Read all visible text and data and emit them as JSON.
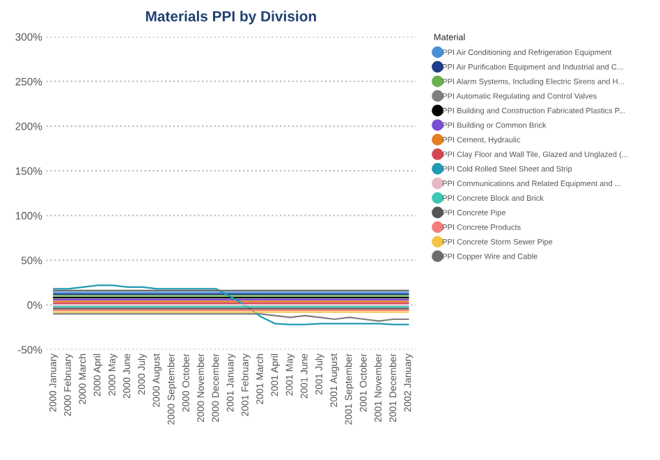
{
  "chart_data": {
    "type": "line",
    "title": "Materials PPI by Division",
    "legend_title": "Material",
    "legend": "right",
    "grid": "y",
    "marker": "none",
    "line_style": "solid",
    "categories": [
      "2000 January",
      "2000 February",
      "2000 March",
      "2000 April",
      "2000 May",
      "2000 June",
      "2000 July",
      "2000 August",
      "2000 September",
      "2000 October",
      "2000 November",
      "2000 December",
      "2001 January",
      "2001 February",
      "2001 March",
      "2001 April",
      "2001 May",
      "2001 June",
      "2001 July",
      "2001 August",
      "2001 September",
      "2001 October",
      "2001 November",
      "2001 December",
      "2002 January"
    ],
    "ylim": [
      -50,
      300
    ],
    "yticks": [
      {
        "value": -50,
        "label": "-50%"
      },
      {
        "value": 0,
        "label": "0%"
      },
      {
        "value": 50,
        "label": "50%"
      },
      {
        "value": 100,
        "label": "100%"
      },
      {
        "value": 150,
        "label": "150%"
      },
      {
        "value": 200,
        "label": "200%"
      },
      {
        "value": 250,
        "label": "250%"
      },
      {
        "value": 300,
        "label": "300%"
      }
    ],
    "series": [
      {
        "name": "PPI Air Conditioning and Refrigeration Equipment",
        "color": "#4a90d9",
        "values": [
          14,
          14,
          14,
          14,
          14,
          14,
          14,
          14,
          14,
          14,
          14,
          14,
          14,
          14,
          14,
          14,
          14,
          14,
          14,
          14,
          14,
          14,
          14,
          14,
          14
        ]
      },
      {
        "name": "PPI Air Purification Equipment and Industrial and C...",
        "color": "#1f3c88",
        "values": [
          12,
          12,
          12,
          12,
          12,
          12,
          12,
          12,
          12,
          12,
          12,
          12,
          12,
          12,
          12,
          12,
          12,
          12,
          12,
          12,
          12,
          12,
          12,
          12,
          12
        ]
      },
      {
        "name": "PPI Alarm Systems, Including Electric Sirens and H...",
        "color": "#6ab04c",
        "values": [
          10,
          10,
          10,
          10,
          10,
          10,
          10,
          10,
          10,
          10,
          10,
          10,
          10,
          10,
          10,
          10,
          10,
          10,
          10,
          10,
          10,
          10,
          10,
          10,
          10
        ]
      },
      {
        "name": "PPI Automatic Regulating and Control Valves",
        "color": "#7f7f7f",
        "values": [
          -10,
          -10,
          -10,
          -10,
          -10,
          -10,
          -10,
          -10,
          -10,
          -10,
          -10,
          -10,
          -10,
          -10,
          -10,
          -12,
          -14,
          -12,
          -14,
          -16,
          -14,
          -16,
          -18,
          -16,
          -16
        ]
      },
      {
        "name": "PPI Building and Construction Fabricated Plastics P...",
        "color": "#000000",
        "values": [
          8,
          8,
          8,
          8,
          8,
          8,
          8,
          8,
          8,
          8,
          8,
          8,
          8,
          8,
          8,
          8,
          8,
          8,
          8,
          8,
          8,
          8,
          8,
          8,
          8
        ]
      },
      {
        "name": "PPI Building or Common Brick",
        "color": "#7b4fd6",
        "values": [
          6,
          6,
          6,
          6,
          6,
          6,
          6,
          6,
          6,
          6,
          6,
          6,
          6,
          6,
          6,
          6,
          6,
          6,
          6,
          6,
          6,
          6,
          6,
          6,
          6
        ]
      },
      {
        "name": "PPI Cement, Hydraulic",
        "color": "#e67e22",
        "values": [
          4,
          4,
          4,
          4,
          4,
          4,
          4,
          4,
          4,
          4,
          4,
          4,
          4,
          4,
          4,
          4,
          4,
          4,
          4,
          4,
          4,
          4,
          4,
          4,
          4
        ]
      },
      {
        "name": "PPI Clay Floor and Wall Tile, Glazed and Unglazed (...",
        "color": "#d64550",
        "values": [
          2,
          2,
          2,
          2,
          2,
          2,
          2,
          2,
          2,
          2,
          2,
          2,
          2,
          2,
          2,
          2,
          2,
          2,
          2,
          2,
          2,
          2,
          2,
          2,
          2
        ]
      },
      {
        "name": "PPI Cold Rolled Steel Sheet and Strip",
        "color": "#1f9bb5",
        "values": [
          18,
          18,
          20,
          22,
          22,
          20,
          20,
          18,
          18,
          18,
          18,
          18,
          9,
          -1,
          -13,
          -21,
          -22,
          -22,
          -21,
          -21,
          -21,
          -21,
          -21,
          -22,
          -22
        ]
      },
      {
        "name": "PPI Communications and Related Equipment and ...",
        "color": "#e6b8c2",
        "values": [
          0,
          0,
          0,
          0,
          0,
          0,
          0,
          0,
          0,
          0,
          0,
          0,
          0,
          0,
          0,
          0,
          0,
          0,
          0,
          0,
          0,
          0,
          0,
          0,
          0
        ]
      },
      {
        "name": "PPI Concrete Block and Brick",
        "color": "#3cc8b4",
        "values": [
          -2,
          -2,
          -2,
          -2,
          -2,
          -2,
          -2,
          -2,
          -2,
          -2,
          -2,
          -2,
          -2,
          -2,
          -2,
          -2,
          -2,
          -2,
          -2,
          -2,
          -2,
          -2,
          -2,
          -2,
          -2
        ]
      },
      {
        "name": "PPI Concrete Pipe",
        "color": "#555555",
        "values": [
          -4,
          -4,
          -4,
          -4,
          -4,
          -4,
          -4,
          -4,
          -4,
          -4,
          -4,
          -4,
          -4,
          -4,
          -4,
          -4,
          -4,
          -4,
          -4,
          -4,
          -4,
          -4,
          -4,
          -4,
          -4
        ]
      },
      {
        "name": "PPI Concrete Products",
        "color": "#f47c7c",
        "values": [
          -6,
          -6,
          -6,
          -6,
          -6,
          -6,
          -6,
          -6,
          -6,
          -6,
          -6,
          -6,
          -6,
          -6,
          -6,
          -6,
          -6,
          -6,
          -6,
          -6,
          -6,
          -6,
          -6,
          -6,
          -6
        ]
      },
      {
        "name": "PPI Concrete Storm Sewer Pipe",
        "color": "#f5c542",
        "values": [
          -8,
          -8,
          -8,
          -8,
          -8,
          -8,
          -8,
          -8,
          -8,
          -8,
          -8,
          -8,
          -8,
          -8,
          -8,
          -8,
          -8,
          -8,
          -8,
          -8,
          -8,
          -8,
          -8,
          -8,
          -8
        ]
      },
      {
        "name": "PPI Copper Wire and Cable",
        "color": "#6d6d6d",
        "values": [
          16,
          16,
          16,
          16,
          16,
          16,
          16,
          16,
          16,
          16,
          16,
          16,
          16,
          16,
          16,
          16,
          16,
          16,
          16,
          16,
          16,
          16,
          16,
          16,
          16
        ]
      }
    ]
  }
}
